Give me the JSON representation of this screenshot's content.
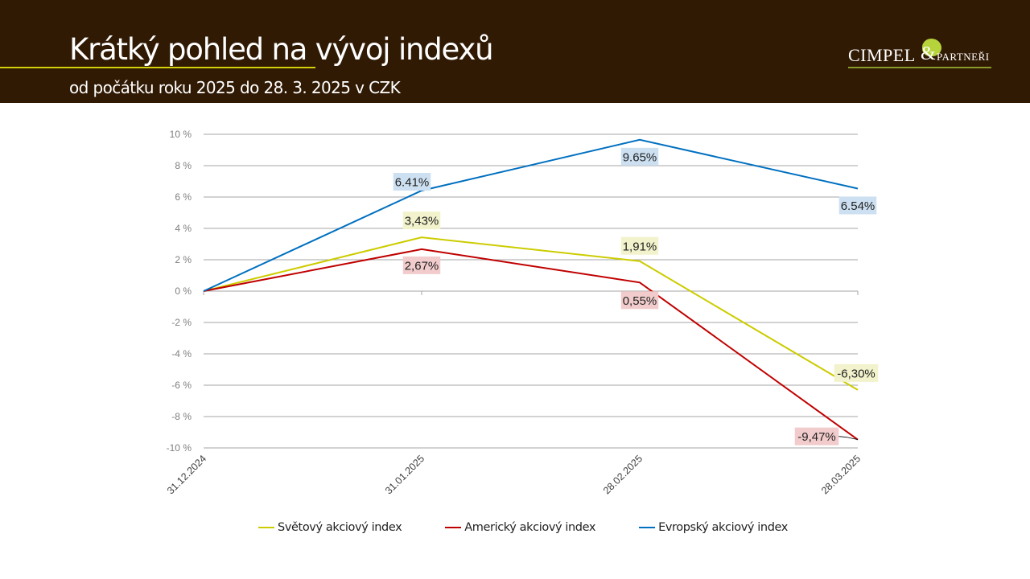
{
  "header": {
    "title": "Krátký pohled na vývoj indexů",
    "subtitle": "od počátku roku 2025 do 28. 3. 2025 v CZK",
    "logo_text": "CIMPEL & PARTNEŘI",
    "logo_main": "CIMPEL",
    "logo_amp": "&",
    "logo_sub": "PARTNEŘI",
    "background_color": "#301a04",
    "accent_color": "#d4cf06"
  },
  "chart_data": {
    "type": "line",
    "title": "",
    "xlabel": "",
    "ylabel": "",
    "categories": [
      "31.12.2024",
      "31.01.2025",
      "28.02.2025",
      "28.03.2025"
    ],
    "ylim": [
      -10,
      10
    ],
    "yticks": [
      10,
      8,
      6,
      4,
      2,
      0,
      -2,
      -4,
      -6,
      -8,
      -10
    ],
    "ytick_labels": [
      "10 %",
      "8 %",
      "6 %",
      "4 %",
      "2 %",
      "0 %",
      "-2 %",
      "-4 %",
      "-6 %",
      "-8 %",
      "-10 %"
    ],
    "grid": true,
    "legend_position": "bottom",
    "series": [
      {
        "name": "Světový akciový index",
        "color": "#cccc00",
        "label_bg": "#f2f2cc",
        "values": [
          0,
          3.43,
          1.91,
          -6.3
        ],
        "data_labels": [
          null,
          "3,43%",
          "1,91%",
          "-6,30%"
        ]
      },
      {
        "name": "Americký akciový index",
        "color": "#c00000",
        "label_bg": "#f2cccc",
        "values": [
          0,
          2.67,
          0.55,
          -9.47
        ],
        "data_labels": [
          null,
          "2,67%",
          "0,55%",
          "-9,47%"
        ]
      },
      {
        "name": "Evropský akciový index",
        "color": "#0070c0",
        "label_bg": "#cce0f2",
        "values": [
          0,
          6.41,
          9.65,
          6.54
        ],
        "data_labels": [
          null,
          "6.41%",
          "9.65%",
          "6.54%"
        ]
      }
    ]
  }
}
